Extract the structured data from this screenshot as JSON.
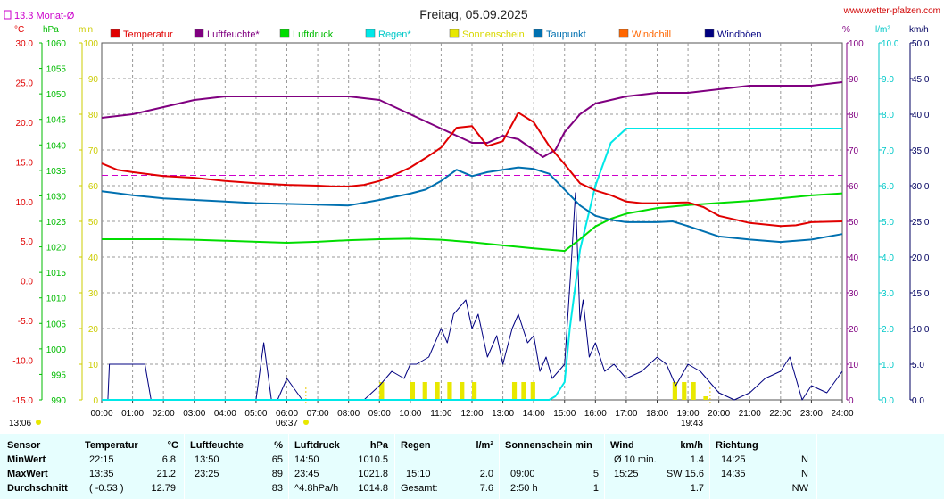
{
  "header": {
    "title": "Freitag, 05.09.2025",
    "url": "www.wetter-pfalzen.com",
    "monthly_avg_label": "13.3 Monat-Ø"
  },
  "chart_data": {
    "type": "line",
    "x_unit": "time of day",
    "x_ticks": [
      "00:00",
      "01:00",
      "02:00",
      "03:00",
      "04:00",
      "05:00",
      "06:00",
      "07:00",
      "08:00",
      "09:00",
      "10:00",
      "11:00",
      "12:00",
      "13:00",
      "14:00",
      "15:00",
      "16:00",
      "17:00",
      "18:00",
      "19:00",
      "20:00",
      "21:00",
      "22:00",
      "23:00",
      "24:00"
    ],
    "sunrise": "06:37",
    "sunset": "19:43",
    "min_marker_time": "13:06",
    "axes": {
      "temperature": {
        "unit": "°C",
        "range": [
          -15,
          30
        ],
        "ticks": [
          "30.0",
          "25.0",
          "20.0",
          "15.0",
          "10.0",
          "5.0",
          "0.0",
          "-5.0",
          "-10.0",
          "-15.0"
        ]
      },
      "pressure": {
        "unit": "hPa",
        "range": [
          990,
          1060
        ],
        "ticks": [
          "1060",
          "1055",
          "1050",
          "1045",
          "1040",
          "1035",
          "1030",
          "1025",
          "1020",
          "1015",
          "1010",
          "1005",
          "1000",
          "995",
          "990"
        ]
      },
      "sunshine": {
        "unit": "min",
        "range": [
          0,
          100
        ],
        "ticks": [
          "100",
          "90",
          "80",
          "70",
          "60",
          "50",
          "40",
          "30",
          "20",
          "10",
          "0"
        ]
      },
      "humidity": {
        "unit": "%",
        "range": [
          0,
          100
        ],
        "ticks": [
          "100",
          "90",
          "80",
          "70",
          "60",
          "50",
          "40",
          "30",
          "20",
          "10",
          "0"
        ]
      },
      "rain": {
        "unit": "l/m²",
        "range": [
          0,
          10
        ],
        "ticks": [
          "10.0",
          "9.0",
          "8.0",
          "7.0",
          "6.0",
          "5.0",
          "4.0",
          "3.0",
          "2.0",
          "1.0",
          "0.0"
        ]
      },
      "wind": {
        "unit": "km/h",
        "range": [
          0,
          50
        ],
        "ticks": [
          "50.0",
          "45.0",
          "40.0",
          "35.0",
          "30.0",
          "25.0",
          "20.0",
          "15.0",
          "10.0",
          "5.0",
          "0.0"
        ]
      }
    },
    "monthly_avg_temp": 13.3,
    "legend": [
      {
        "name": "Temperatur",
        "color": "#e00000"
      },
      {
        "name": "Luftfeuchte*",
        "color": "#800080"
      },
      {
        "name": "Luftdruck",
        "color": "#00dd00"
      },
      {
        "name": "Regen*",
        "color": "#00e8e8"
      },
      {
        "name": "Sonnenschein",
        "color": "#e8e800"
      },
      {
        "name": "Taupunkt",
        "color": "#0070b0"
      },
      {
        "name": "Windchill",
        "color": "#ff6600"
      },
      {
        "name": "Windböen",
        "color": "#000080"
      }
    ],
    "series": [
      {
        "name": "Temperatur",
        "axis": "temperature",
        "x": [
          0,
          0.5,
          1,
          2,
          3,
          4,
          5,
          6,
          7,
          7.5,
          8,
          8.5,
          9,
          9.5,
          10,
          10.5,
          11,
          11.5,
          12,
          12.5,
          13,
          13.5,
          14,
          14.5,
          15,
          15.5,
          16,
          16.5,
          17,
          17.5,
          18,
          19,
          19.5,
          20,
          21,
          22,
          22.5,
          23,
          24
        ],
        "y": [
          14.8,
          14.0,
          13.7,
          13.2,
          13.0,
          12.6,
          12.3,
          12.1,
          12.0,
          11.9,
          11.9,
          12.1,
          12.6,
          13.4,
          14.3,
          15.5,
          16.8,
          19.3,
          19.5,
          17.0,
          17.6,
          21.2,
          20.0,
          17.0,
          14.7,
          12.3,
          11.4,
          10.8,
          10.0,
          9.8,
          9.8,
          9.9,
          9.3,
          8.2,
          7.3,
          6.9,
          7.0,
          7.4,
          7.5
        ]
      },
      {
        "name": "Luftfeuchte*",
        "axis": "humidity",
        "x": [
          0,
          1,
          2,
          3,
          4,
          5,
          6,
          7,
          8,
          9,
          10,
          11,
          11.5,
          12,
          12.5,
          13,
          13.5,
          14,
          14.3,
          14.7,
          15,
          15.5,
          16,
          17,
          18,
          19,
          20,
          21,
          22,
          23,
          24
        ],
        "y": [
          79,
          80,
          82,
          84,
          85,
          85,
          85,
          85,
          85,
          84,
          80,
          76,
          74,
          72,
          72,
          74,
          73,
          70,
          68,
          70,
          75,
          80,
          83,
          85,
          86,
          86,
          87,
          88,
          88,
          88,
          89
        ]
      },
      {
        "name": "Luftdruck",
        "axis": "pressure",
        "x": [
          0,
          1,
          2,
          3,
          4,
          5,
          6,
          7,
          8,
          9,
          10,
          11,
          12,
          13,
          14,
          15,
          15.5,
          16,
          16.5,
          17,
          18,
          19,
          20,
          21,
          22,
          23,
          24
        ],
        "y": [
          1021.5,
          1021.5,
          1021.5,
          1021.4,
          1021.2,
          1021.0,
          1020.8,
          1021.0,
          1021.3,
          1021.5,
          1021.6,
          1021.4,
          1020.9,
          1020.3,
          1019.7,
          1019.2,
          1021.5,
          1024.0,
          1025.5,
          1026.5,
          1027.6,
          1028.2,
          1028.6,
          1029.0,
          1029.5,
          1030.1,
          1030.5
        ]
      },
      {
        "name": "Regen*",
        "axis": "rain",
        "x": [
          0,
          14.5,
          14.7,
          15,
          15.17,
          15.5,
          16,
          16.5,
          17,
          17.5,
          24
        ],
        "y": [
          0,
          0,
          0.1,
          0.5,
          2.0,
          4.2,
          6.0,
          7.2,
          7.6,
          7.6,
          7.6
        ]
      },
      {
        "name": "Taupunkt",
        "axis": "temperature",
        "x": [
          0,
          1,
          2,
          3,
          4,
          5,
          6,
          7,
          8,
          9,
          10,
          10.5,
          11,
          11.5,
          12,
          12.5,
          13,
          13.5,
          14,
          14.5,
          15,
          15.5,
          16,
          16.5,
          17,
          18,
          18.5,
          19,
          20,
          21,
          22,
          23,
          24
        ],
        "y": [
          11.3,
          10.8,
          10.4,
          10.2,
          10.0,
          9.8,
          9.7,
          9.6,
          9.5,
          10.2,
          11.0,
          11.5,
          12.6,
          14.0,
          13.2,
          13.7,
          14.0,
          14.3,
          14.1,
          13.5,
          11.5,
          9.5,
          8.2,
          7.7,
          7.4,
          7.4,
          7.5,
          6.9,
          5.6,
          5.2,
          4.9,
          5.2,
          5.9
        ]
      },
      {
        "name": "Sonnenschein",
        "axis": "sunshine",
        "x": [
          9.0,
          10.0,
          10.4,
          10.8,
          11.2,
          11.6,
          12.0,
          13.3,
          13.6,
          13.9,
          18.5,
          18.8,
          19.1,
          19.5
        ],
        "y": [
          5,
          5,
          5,
          5,
          5,
          5,
          5,
          5,
          5,
          5,
          5,
          5,
          5,
          1
        ]
      },
      {
        "name": "Windböen",
        "axis": "wind",
        "x": [
          0,
          0.2,
          0.25,
          0.5,
          1,
          1.2,
          1.4,
          1.6,
          1.7,
          5,
          5.25,
          5.5,
          5.7,
          6.0,
          6.5,
          7,
          7.5,
          8,
          8.5,
          9,
          9.4,
          9.8,
          10,
          10.2,
          10.6,
          11,
          11.2,
          11.4,
          11.8,
          12,
          12.2,
          12.5,
          12.8,
          13,
          13.3,
          13.5,
          13.8,
          14,
          14.2,
          14.4,
          14.6,
          15,
          15.2,
          15.35,
          15.5,
          15.6,
          15.8,
          16,
          16.3,
          16.6,
          17,
          17.5,
          18,
          18.3,
          18.6,
          19,
          19.4,
          19.8,
          20,
          20.5,
          21,
          21.5,
          22,
          22.3,
          22.7,
          23,
          23.5,
          24
        ],
        "y": [
          0,
          0,
          5,
          5,
          5,
          5,
          5,
          0,
          0,
          0,
          8,
          0,
          0,
          3,
          0,
          0,
          0,
          0,
          0,
          2,
          4,
          3,
          5,
          5,
          6,
          10,
          8,
          12,
          14,
          10,
          12,
          6,
          9,
          5,
          10,
          12,
          8,
          9,
          4,
          6,
          3,
          5,
          18,
          29,
          11,
          14,
          6,
          8,
          4,
          5,
          3,
          4,
          6,
          5,
          2,
          5,
          4,
          2,
          1,
          0,
          1,
          3,
          4,
          6,
          0,
          2,
          1,
          4
        ]
      }
    ]
  },
  "stats": {
    "headers": {
      "sensor": "Sensor",
      "temp": "Temperatur",
      "temp_unit": "°C",
      "hum": "Luftfeuchte",
      "hum_unit": "%",
      "press": "Luftdruck",
      "press_unit": "hPa",
      "rain": "Regen",
      "rain_unit": "l/m²",
      "sun": "Sonnenschein min",
      "wind": "Wind",
      "wind_unit": "km/h",
      "dir": "Richtung"
    },
    "rows": [
      {
        "label": "MinWert",
        "temp_time": "22:15",
        "temp_val": "6.8",
        "hum_time": "13:50",
        "hum_val": "65",
        "press_time": "14:50",
        "press_val": "1010.5",
        "rain_time": "",
        "rain_val": "",
        "sun_time": "",
        "sun_val": "",
        "wind_time": "Ø 10 min.",
        "wind_val": "1.4",
        "dir_time": "14:25",
        "dir_val": "N"
      },
      {
        "label": "MaxWert",
        "temp_time": "13:35",
        "temp_val": "21.2",
        "hum_time": "23:25",
        "hum_val": "89",
        "press_time": "23:45",
        "press_val": "1021.8",
        "rain_time": "15:10",
        "rain_val": "2.0",
        "sun_time": "09:00",
        "sun_val": "5",
        "wind_time": "15:25",
        "wind_val": "SW 15.6",
        "dir_time": "14:35",
        "dir_val": "N"
      },
      {
        "label": "Durchschnitt",
        "temp_time": "( -0.53 )",
        "temp_val": "12.79",
        "hum_time": "",
        "hum_val": "83",
        "press_time": "^4.8hPa/h",
        "press_val": "1014.8",
        "rain_time": "Gesamt:",
        "rain_val": "7.6",
        "sun_time": "2:50 h",
        "sun_val": "1",
        "wind_time": "",
        "wind_val": "1.7",
        "dir_time": "",
        "dir_val": "NW"
      }
    ]
  }
}
